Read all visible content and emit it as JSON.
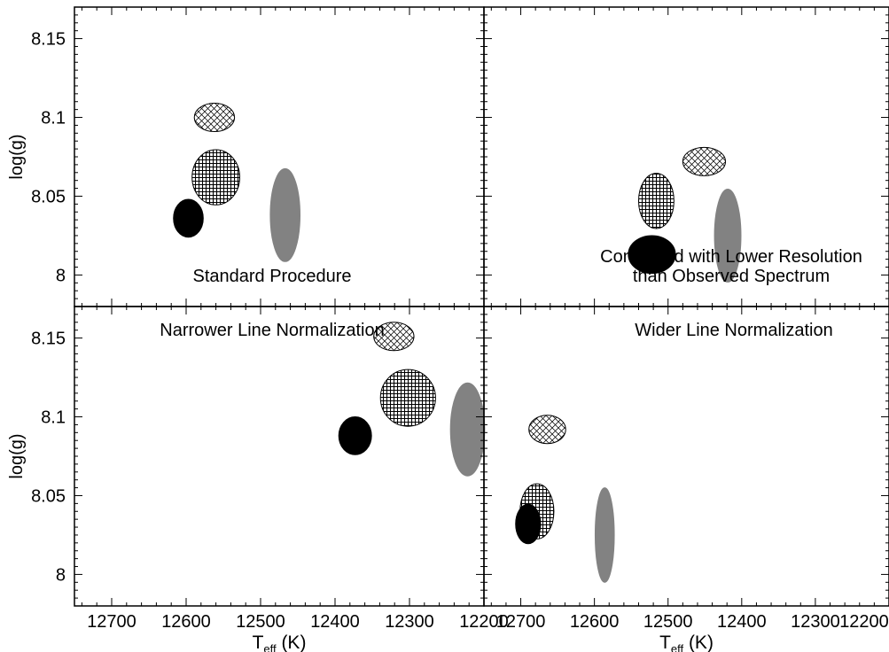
{
  "figure": {
    "ylabel": "log(g)",
    "xlabel_main": "T",
    "xlabel_sub": "eff",
    "xlabel_unit": "(K)"
  },
  "chart_data": [
    {
      "type": "scatter",
      "title": "Standard Procedure",
      "xlabel": "T_eff (K)",
      "ylabel": "log(g)",
      "xlim": [
        12750,
        12200
      ],
      "ylim": [
        8.17,
        7.98
      ],
      "xticks": [
        12700,
        12600,
        12500,
        12400,
        12300,
        12200
      ],
      "yticks": [
        8,
        8.05,
        8.1,
        8.15
      ],
      "ellipses": [
        {
          "fill": "solid-black",
          "teff": 12597,
          "logg": 8.036,
          "d_teff": 40,
          "d_logg": 0.024
        },
        {
          "fill": "square-grid",
          "teff": 12560,
          "logg": 8.062,
          "d_teff": 64,
          "d_logg": 0.035
        },
        {
          "fill": "solid-gray",
          "teff": 12467,
          "logg": 8.038,
          "d_teff": 40,
          "d_logg": 0.059
        },
        {
          "fill": "diagonal-crosshatch",
          "teff": 12562,
          "logg": 8.1,
          "d_teff": 54,
          "d_logg": 0.018
        }
      ]
    },
    {
      "type": "scatter",
      "title": "Convolved with Lower Resolution\nthan Observed Spectrum",
      "xlabel": "T_eff (K)",
      "ylabel": "log(g)",
      "xlim": [
        12750,
        12200
      ],
      "ylim": [
        8.17,
        7.98
      ],
      "xticks": [
        12700,
        12600,
        12500,
        12400,
        12300,
        12200
      ],
      "yticks": [
        8,
        8.05,
        8.1,
        8.15
      ],
      "ellipses": [
        {
          "fill": "solid-black",
          "teff": 12522,
          "logg": 8.013,
          "d_teff": 64,
          "d_logg": 0.024
        },
        {
          "fill": "square-grid",
          "teff": 12516,
          "logg": 8.047,
          "d_teff": 48,
          "d_logg": 0.035
        },
        {
          "fill": "solid-gray",
          "teff": 12419,
          "logg": 8.025,
          "d_teff": 36,
          "d_logg": 0.059
        },
        {
          "fill": "diagonal-crosshatch",
          "teff": 12451,
          "logg": 8.072,
          "d_teff": 58,
          "d_logg": 0.018
        }
      ]
    },
    {
      "type": "scatter",
      "title": "Narrower Line Normalization",
      "xlabel": "T_eff (K)",
      "ylabel": "log(g)",
      "xlim": [
        12750,
        12200
      ],
      "ylim": [
        8.17,
        7.98
      ],
      "xticks": [
        12700,
        12600,
        12500,
        12400,
        12300,
        12200
      ],
      "yticks": [
        8,
        8.05,
        8.1,
        8.15
      ],
      "ellipses": [
        {
          "fill": "solid-black",
          "teff": 12373,
          "logg": 8.088,
          "d_teff": 44,
          "d_logg": 0.024
        },
        {
          "fill": "square-grid",
          "teff": 12302,
          "logg": 8.112,
          "d_teff": 74,
          "d_logg": 0.036
        },
        {
          "fill": "solid-gray",
          "teff": 12222,
          "logg": 8.092,
          "d_teff": 46,
          "d_logg": 0.059
        },
        {
          "fill": "diagonal-crosshatch",
          "teff": 12321,
          "logg": 8.151,
          "d_teff": 54,
          "d_logg": 0.018
        }
      ]
    },
    {
      "type": "scatter",
      "title": "Wider Line Normalization",
      "xlabel": "T_eff (K)",
      "ylabel": "log(g)",
      "xlim": [
        12750,
        12200
      ],
      "ylim": [
        8.17,
        7.98
      ],
      "xticks": [
        12700,
        12600,
        12500,
        12400,
        12300,
        12200
      ],
      "yticks": [
        8,
        8.05,
        8.1,
        8.15
      ],
      "ellipses": [
        {
          "fill": "square-grid",
          "teff": 12678,
          "logg": 8.04,
          "d_teff": 46,
          "d_logg": 0.035
        },
        {
          "fill": "solid-black",
          "teff": 12690,
          "logg": 8.032,
          "d_teff": 34,
          "d_logg": 0.025
        },
        {
          "fill": "solid-gray",
          "teff": 12586,
          "logg": 8.025,
          "d_teff": 26,
          "d_logg": 0.06
        },
        {
          "fill": "diagonal-crosshatch",
          "teff": 12664,
          "logg": 8.092,
          "d_teff": 50,
          "d_logg": 0.018
        }
      ]
    }
  ]
}
